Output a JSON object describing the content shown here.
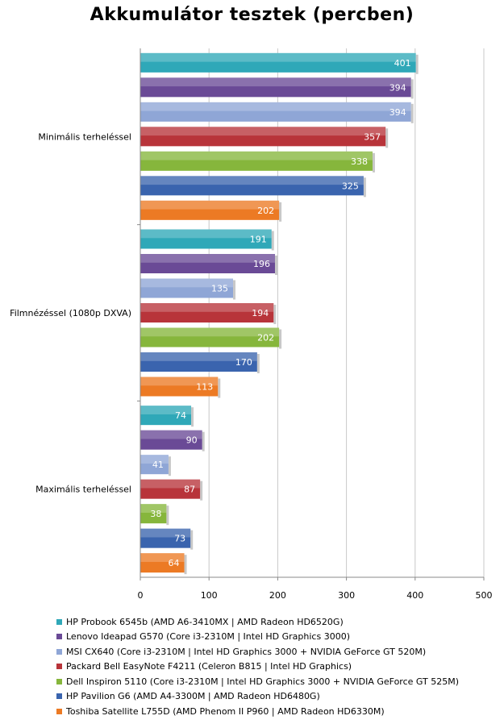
{
  "chart_data": {
    "type": "bar",
    "orientation": "horizontal",
    "title": "Akkumulátor tesztek (percben)",
    "categories": [
      "Minimális terheléssel",
      "Filmnézéssel (1080p DXVA)",
      "Maximális terheléssel"
    ],
    "series": [
      {
        "name": "HP Probook 6545b (AMD A6-3410MX | AMD Radeon HD6520G)",
        "color": "#2fa8b8",
        "values": [
          401,
          191,
          74
        ]
      },
      {
        "name": "Lenovo Ideapad G570 (Core i3-2310M | Intel HD Graphics 3000)",
        "color": "#6a4a96",
        "values": [
          394,
          196,
          90
        ]
      },
      {
        "name": "MSI CX640 (Core i3-2310M | Intel HD Graphics 3000 + NVIDIA GeForce GT 520M)",
        "color": "#8fa6d6",
        "values": [
          394,
          135,
          41
        ]
      },
      {
        "name": "Packard Bell EasyNote F4211 (Celeron B815 | Intel HD Graphics)",
        "color": "#b8343a",
        "values": [
          357,
          194,
          87
        ]
      },
      {
        "name": "Dell Inspiron 5110 (Core i3-2310M | Intel HD Graphics 3000 + NVIDIA GeForce GT 525M)",
        "color": "#86b63c",
        "values": [
          338,
          202,
          38
        ]
      },
      {
        "name": "HP Pavilion G6 (AMD A4-3300M | AMD Radeon HD6480G)",
        "color": "#3a64ae",
        "values": [
          325,
          170,
          73
        ]
      },
      {
        "name": "Toshiba Satellite L755D (AMD Phenom II P960 | AMD Radeon HD6330M)",
        "color": "#ec7a24",
        "values": [
          202,
          113,
          64
        ]
      }
    ],
    "xlim": [
      0,
      500
    ],
    "ticks": [
      0,
      100,
      200,
      300,
      400,
      500
    ],
    "grid": true,
    "legend_position": "bottom"
  }
}
